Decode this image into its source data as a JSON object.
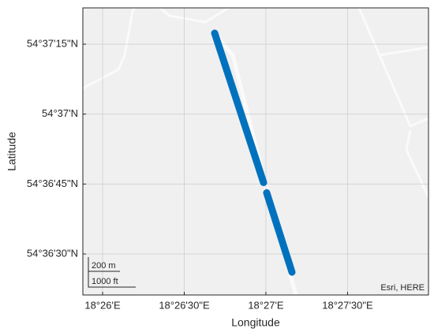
{
  "chart_data": {
    "type": "line",
    "xlabel": "Longitude",
    "ylabel": "Latitude",
    "x": [
      18.44477,
      18.44976,
      null,
      18.45008,
      18.45266
    ],
    "series": [
      {
        "color": "#0072bd",
        "values": [
          54.62149,
          54.61259,
          null,
          54.61198,
          54.60725
        ]
      }
    ],
    "xlim": [
      18.43132,
      18.46659
    ],
    "ylim": [
      54.60589,
      54.622994
    ],
    "xticks": [
      {
        "value": 18.433333,
        "label": "18°26'E"
      },
      {
        "value": 18.441667,
        "label": "18°26'30\"E"
      },
      {
        "value": 18.45,
        "label": "18°27'E"
      },
      {
        "value": 18.458333,
        "label": "18°27'30\"E"
      }
    ],
    "yticks": [
      {
        "value": 54.608333,
        "label": "54°36'30\"N"
      },
      {
        "value": 54.6125,
        "label": "54°36'45\"N"
      },
      {
        "value": 54.616667,
        "label": "54°37'N"
      },
      {
        "value": 54.620833,
        "label": "54°37'15\"N"
      }
    ],
    "grid": true,
    "scalebar": [
      "200 m",
      "1000 ft"
    ],
    "attribution": "Esri, HERE"
  }
}
